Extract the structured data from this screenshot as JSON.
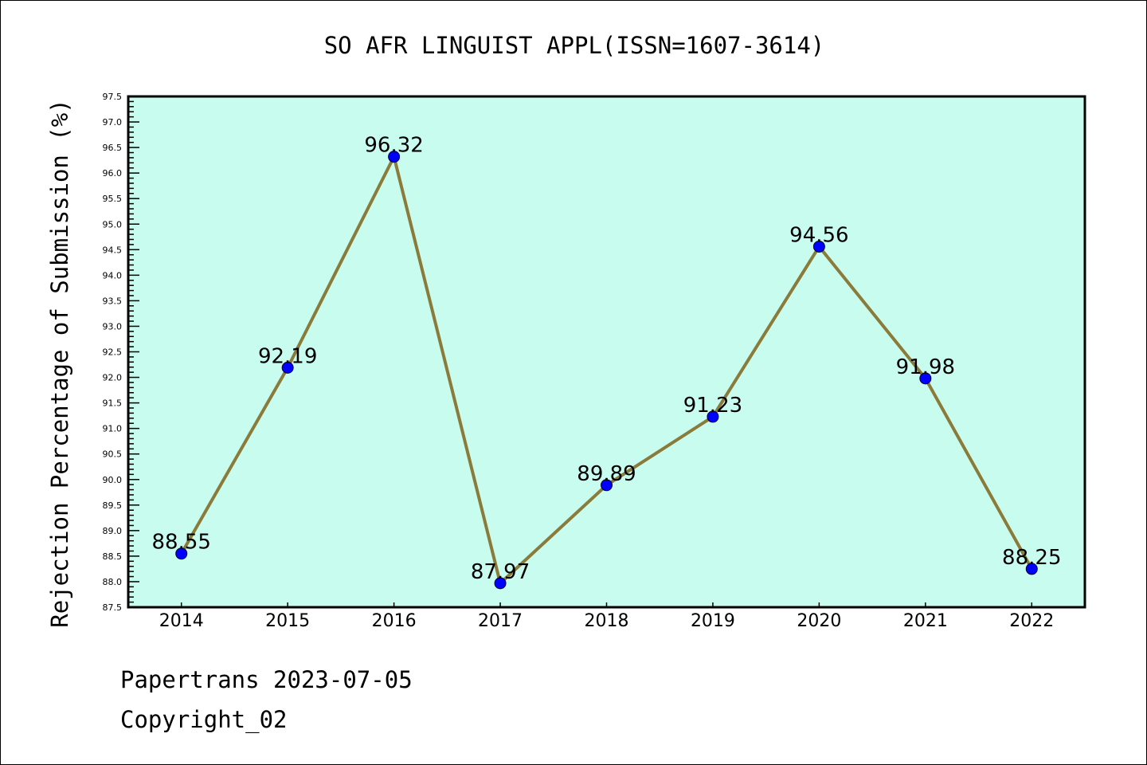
{
  "chart_data": {
    "type": "line",
    "title": "SO AFR LINGUIST APPL(ISSN=1607-3614)",
    "xlabel": "",
    "ylabel": "Rejection Percentage of Submission (%)",
    "categories": [
      "2014",
      "2015",
      "2016",
      "2017",
      "2018",
      "2019",
      "2020",
      "2021",
      "2022"
    ],
    "values": [
      88.55,
      92.19,
      96.32,
      87.97,
      89.89,
      91.23,
      94.56,
      91.98,
      88.25
    ],
    "data_labels": [
      "88.55",
      "92.19",
      "96.32",
      "87.97",
      "89.89",
      "91.23",
      "94.56",
      "91.98",
      "88.25"
    ],
    "ylim": [
      87.5,
      97.5
    ],
    "ytick_step": 0.5,
    "yminor_step": 0.1,
    "grid": false,
    "colors": {
      "background": "#c8fcef",
      "line": "#8b7b3a",
      "marker": "#0000ff"
    }
  },
  "footer": {
    "line1": "Papertrans 2023-07-05",
    "line2": "Copyright_02"
  }
}
